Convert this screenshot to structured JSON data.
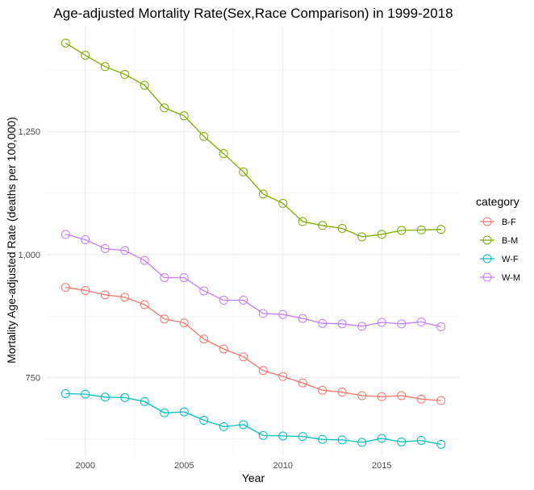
{
  "chart_data": {
    "type": "line",
    "title": "Age-adjusted Mortality Rate(Sex,Race Comparison) in 1999-2018",
    "xlabel": "Year",
    "ylabel": "Mortality Age-adjusted Rate (deaths per 100,000)",
    "x": [
      1999,
      2000,
      2001,
      2002,
      2003,
      2004,
      2005,
      2006,
      2007,
      2008,
      2009,
      2010,
      2011,
      2012,
      2013,
      2014,
      2015,
      2016,
      2017,
      2018
    ],
    "xlim": [
      1998.05,
      2018.95
    ],
    "ylim": [
      590,
      1465
    ],
    "x_ticks": [
      2000,
      2005,
      2010,
      2015
    ],
    "y_ticks": [
      750,
      1000,
      1250
    ],
    "grid": true,
    "legend": {
      "title": "category",
      "position": "right"
    },
    "series": [
      {
        "name": "B-F",
        "color": "#F8766D",
        "values": [
          933,
          927,
          918,
          913,
          898,
          869,
          861,
          828,
          808,
          792,
          764,
          752,
          739,
          724,
          720,
          713,
          711,
          713,
          706,
          703
        ]
      },
      {
        "name": "B-M",
        "color": "#7CAE00",
        "values": [
          1430,
          1405,
          1382,
          1366,
          1344,
          1298,
          1282,
          1240,
          1205,
          1168,
          1123,
          1104,
          1067,
          1059,
          1053,
          1036,
          1041,
          1049,
          1050,
          1051
        ]
      },
      {
        "name": "W-F",
        "color": "#00BFC4",
        "values": [
          717,
          716,
          710,
          709,
          701,
          678,
          680,
          663,
          650,
          654,
          632,
          631,
          630,
          624,
          623,
          618,
          626,
          619,
          622,
          614
        ]
      },
      {
        "name": "W-M",
        "color": "#C77CFF",
        "values": [
          1041,
          1030,
          1012,
          1008,
          988,
          953,
          953,
          926,
          907,
          907,
          880,
          878,
          870,
          860,
          859,
          854,
          862,
          859,
          863,
          853
        ]
      }
    ]
  }
}
